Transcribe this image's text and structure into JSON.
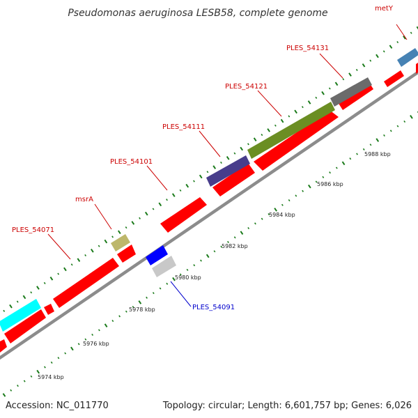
{
  "title": "Pseudomonas aeruginosa LESB58, complete genome",
  "accession": "Accession: NC_011770",
  "summary": "Topology: circular; Length: 6,601,757 bp; Genes: 6,026",
  "kbp_ticks": [
    "5974 kbp",
    "5976 kbp",
    "5978 kbp",
    "5980 kbp",
    "5982 kbp",
    "5984 kbp",
    "5986 kbp",
    "5988 kbp"
  ],
  "gene_labels": [
    {
      "id": "metY",
      "text": "metY",
      "color": "#cc0000"
    },
    {
      "id": "ples-54131",
      "text": "PLES_54131",
      "color": "#cc0000"
    },
    {
      "id": "ples-54121",
      "text": "PLES_54121",
      "color": "#cc0000"
    },
    {
      "id": "ples-54111",
      "text": "PLES_54111",
      "color": "#cc0000"
    },
    {
      "id": "ples-54101",
      "text": "PLES_54101",
      "color": "#cc0000"
    },
    {
      "id": "msra",
      "text": "msrA",
      "color": "#cc0000"
    },
    {
      "id": "ples-54071",
      "text": "PLES_54071",
      "color": "#cc0000"
    },
    {
      "id": "ples-54091",
      "text": "PLES_54091",
      "color": "#0000cc"
    }
  ],
  "colors": {
    "cds": "#ff0000",
    "backbone": "#8c8c8c",
    "tick_mark": "#1a7a1a",
    "label_red": "#cc0000",
    "label_blue": "#0000cc"
  },
  "feature_colors": [
    "#4682b4",
    "#6b6b6b",
    "#6b8e23",
    "#483d8b",
    "#bdb76b",
    "#0000ff",
    "#c8c8c8",
    "#00ffff"
  ]
}
